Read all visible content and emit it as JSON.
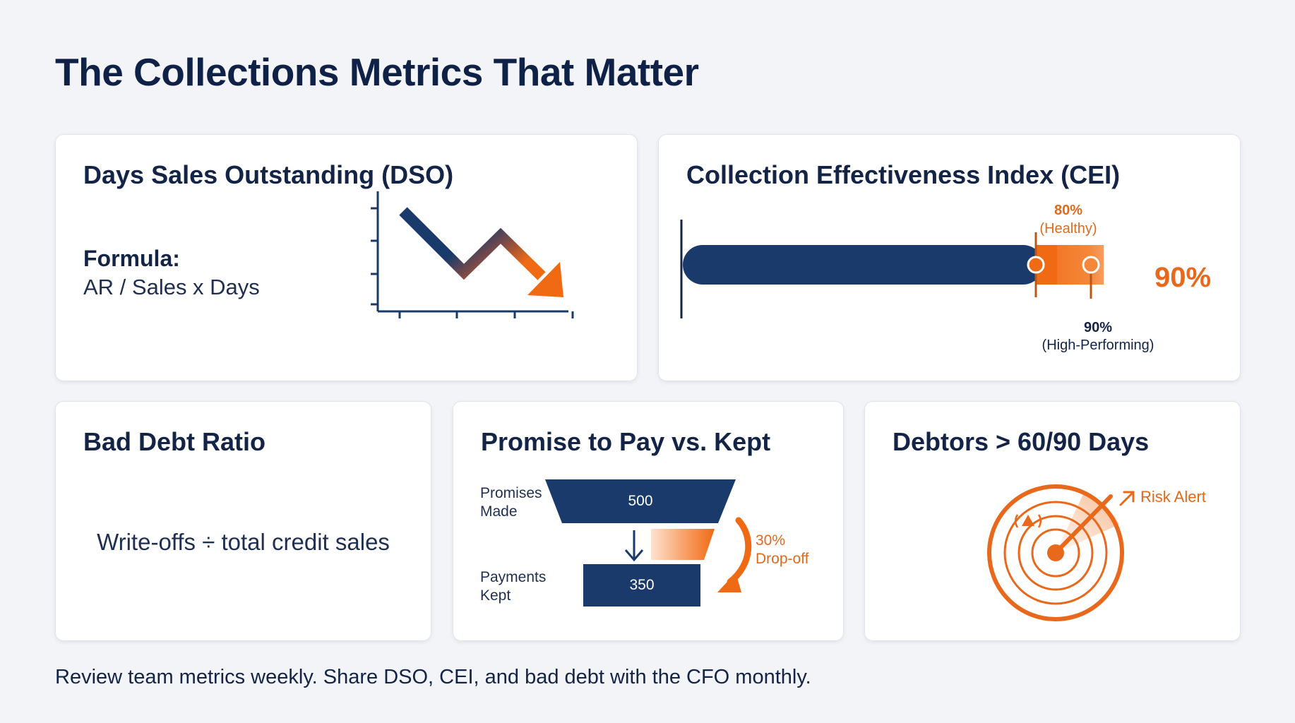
{
  "title": "The Collections Metrics That Matter",
  "dso": {
    "title": "Days Sales Outstanding (DSO)",
    "formula_label": "Formula:",
    "formula": "AR / Sales x Days"
  },
  "cei": {
    "title": "Collection Effectiveness Index (CEI)",
    "value_label": "90%",
    "healthy_value": "80%",
    "healthy_label": "(Healthy)",
    "high_value": "90%",
    "high_label": "(High-Performing)",
    "bar_fill": 0.9,
    "healthy_mark": 0.8
  },
  "bad_debt": {
    "title": "Bad Debt Ratio",
    "formula": "Write-offs ÷ total credit sales"
  },
  "promise": {
    "title": "Promise to Pay vs. Kept",
    "promises_label_1": "Promises",
    "promises_label_2": "Made",
    "promises_value": "500",
    "payments_label_1": "Payments",
    "payments_label_2": "Kept",
    "payments_value": "350",
    "dropoff_value": "30%",
    "dropoff_label": "Drop-off"
  },
  "debtors": {
    "title": "Debtors > 60/90 Days",
    "alert_label": "Risk Alert"
  },
  "footer": "Review team metrics weekly. Share DSO, CEI, and bad debt with the CFO monthly.",
  "colors": {
    "navy": "#1a3a6b",
    "orange": "#e8681c",
    "title": "#0f2147"
  }
}
